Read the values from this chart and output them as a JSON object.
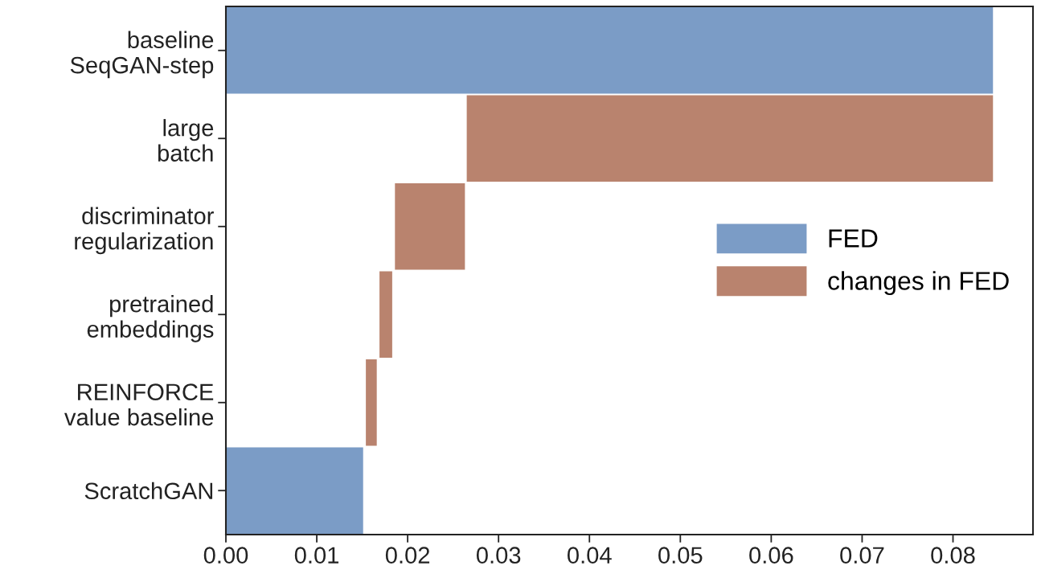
{
  "chart_data": {
    "type": "bar",
    "orientation": "horizontal",
    "categories": [
      "baseline\nSeqGAN-step",
      "large\nbatch",
      "discriminator\nregularization",
      "pretrained\nembeddings",
      "REINFORCE\nvalue baseline",
      "ScratchGAN"
    ],
    "series": [
      {
        "name": "FED",
        "color": "#7b9cc6",
        "values": [
          0.0844,
          null,
          null,
          null,
          null,
          0.0151
        ]
      },
      {
        "name": "changes in FED",
        "color": "#b9836e",
        "base": [
          null,
          0.0265,
          0.0186,
          0.0169,
          0.0154,
          null
        ],
        "values": [
          null,
          0.0579,
          0.0077,
          0.0014,
          0.0012,
          null
        ]
      }
    ],
    "xlim": [
      0,
      0.0888
    ],
    "xticks": [
      {
        "value": 0,
        "label": "0.00"
      },
      0.01,
      0.02,
      0.03,
      0.04,
      0.05,
      0.06,
      0.07,
      0.08
    ],
    "grid": false,
    "legend": "right"
  }
}
